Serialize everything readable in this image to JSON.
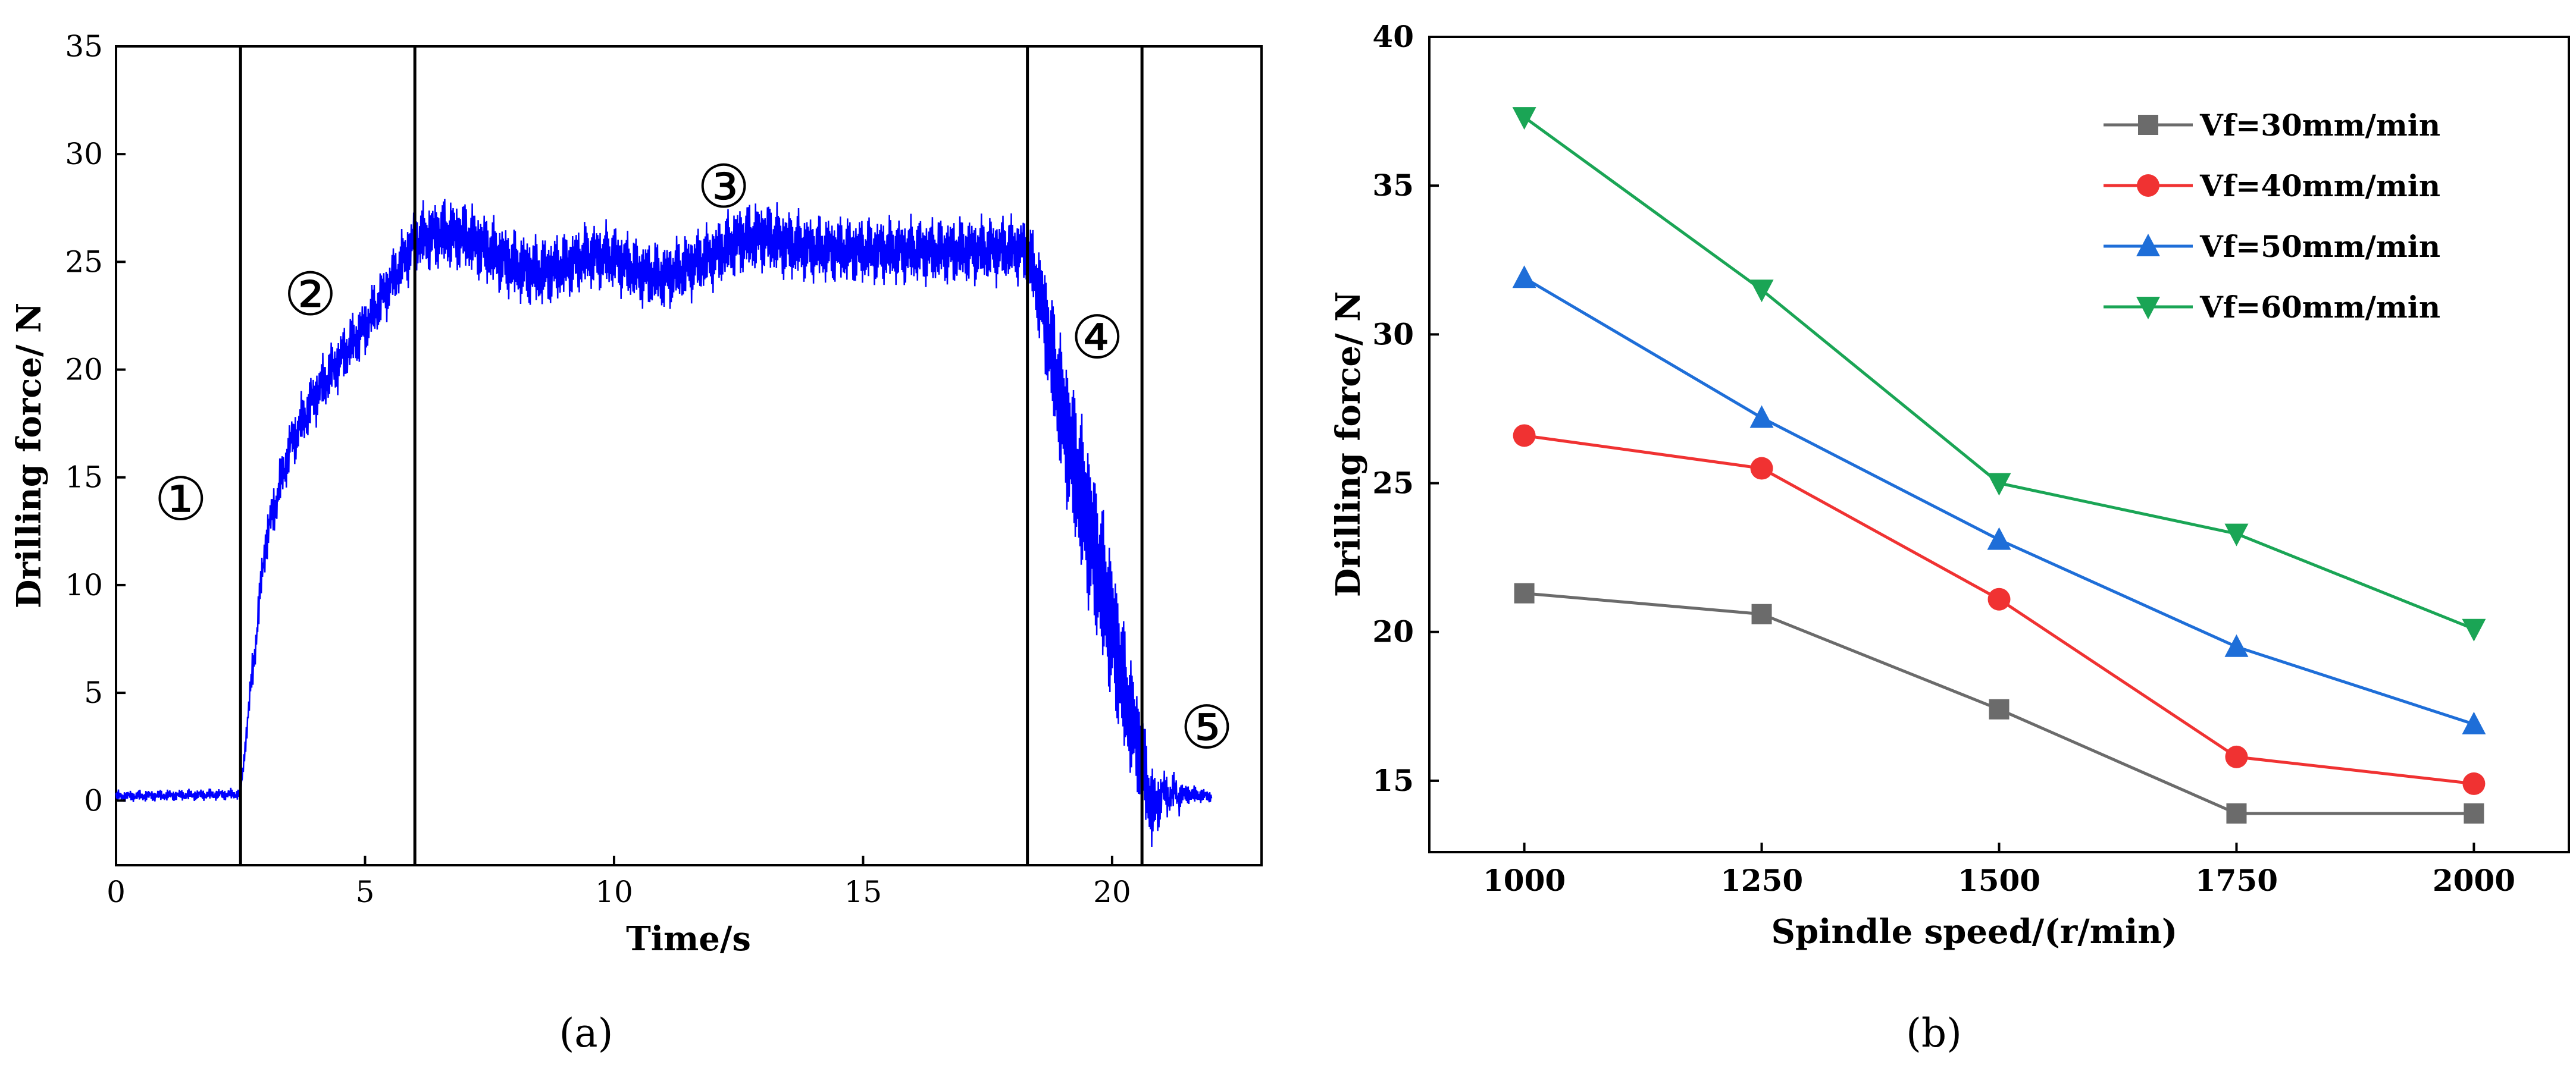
{
  "figure": {
    "panel_a_label": "(a)",
    "panel_b_label": "(b)"
  },
  "chart_data": [
    {
      "id": "a",
      "type": "line",
      "title": "",
      "xlabel": "Time/s",
      "ylabel": "Drilling force/ N",
      "xlim": [
        0,
        23
      ],
      "ylim": [
        -3,
        35
      ],
      "xticks": [
        0,
        5,
        10,
        15,
        20
      ],
      "yticks": [
        0,
        5,
        10,
        15,
        20,
        25,
        30,
        35
      ],
      "series_color": "#0000ff",
      "phase_boundaries": [
        2.5,
        6.0,
        18.3,
        20.6
      ],
      "phase_labels": [
        {
          "label": "①",
          "x": 1.3,
          "y": 14
        },
        {
          "label": "②",
          "x": 3.9,
          "y": 23.5
        },
        {
          "label": "③",
          "x": 12.2,
          "y": 28.5
        },
        {
          "label": "④",
          "x": 19.7,
          "y": 21.5
        },
        {
          "label": "⑤",
          "x": 21.9,
          "y": 3.4
        }
      ],
      "envelope": {
        "t": [
          0,
          2.5,
          2.7,
          3.0,
          3.5,
          4.0,
          4.5,
          5.0,
          5.5,
          6.0,
          6.5,
          7.0,
          7.5,
          8.0,
          8.5,
          9.0,
          9.5,
          10.0,
          10.5,
          11.0,
          11.5,
          12.0,
          12.5,
          13.0,
          13.5,
          14.0,
          15.0,
          16.0,
          17.0,
          18.0,
          18.3,
          18.6,
          19.0,
          19.5,
          20.0,
          20.3,
          20.6,
          20.8,
          21.0,
          21.5,
          22.0
        ],
        "mean": [
          0.2,
          0.3,
          5.0,
          12.0,
          16.5,
          18.8,
          20.5,
          22.0,
          24.0,
          26.0,
          26.3,
          26.2,
          25.5,
          24.8,
          24.5,
          24.8,
          25.3,
          25.2,
          24.5,
          24.3,
          24.8,
          25.3,
          26.0,
          26.2,
          25.8,
          25.6,
          25.5,
          25.5,
          25.5,
          25.6,
          25.5,
          23.0,
          18.0,
          13.0,
          8.0,
          4.5,
          2.0,
          -0.5,
          0.3,
          0.3,
          0.2
        ],
        "amp": [
          0.2,
          0.2,
          0.6,
          0.8,
          0.9,
          1.0,
          1.0,
          1.0,
          1.0,
          1.2,
          1.3,
          1.3,
          1.3,
          1.3,
          1.3,
          1.2,
          1.2,
          1.2,
          1.2,
          1.2,
          1.2,
          1.2,
          1.3,
          1.3,
          1.3,
          1.2,
          1.2,
          1.2,
          1.2,
          1.2,
          1.2,
          2.0,
          3.0,
          3.5,
          3.2,
          2.6,
          2.0,
          1.6,
          0.8,
          0.4,
          0.2
        ]
      }
    },
    {
      "id": "b",
      "type": "line",
      "title": "",
      "xlabel": "Spindle speed/(r/min)",
      "ylabel": "Drilling force/ N",
      "xlim": [
        900,
        2100
      ],
      "ylim": [
        12.6,
        40
      ],
      "xticks": [
        1000,
        1250,
        1500,
        1750,
        2000
      ],
      "yticks": [
        15,
        20,
        25,
        30,
        35,
        40
      ],
      "categories": [
        1000,
        1250,
        1500,
        1750,
        2000
      ],
      "legend_position": "top-right",
      "series": [
        {
          "name": "Vf=30mm/min",
          "marker": "square",
          "color": "#6b6b6b",
          "values": [
            21.3,
            20.6,
            17.4,
            13.9,
            13.9
          ]
        },
        {
          "name": "Vf=40mm/min",
          "marker": "circle",
          "color": "#f03232",
          "values": [
            26.6,
            25.5,
            21.1,
            15.8,
            14.9
          ]
        },
        {
          "name": "Vf=50mm/min",
          "marker": "triangle-up",
          "color": "#1e6ed8",
          "values": [
            31.9,
            27.2,
            23.1,
            19.5,
            16.9
          ]
        },
        {
          "name": "Vf=60mm/min",
          "marker": "triangle-down",
          "color": "#1aa555",
          "values": [
            37.3,
            31.5,
            25.0,
            23.3,
            20.1
          ]
        }
      ]
    }
  ]
}
